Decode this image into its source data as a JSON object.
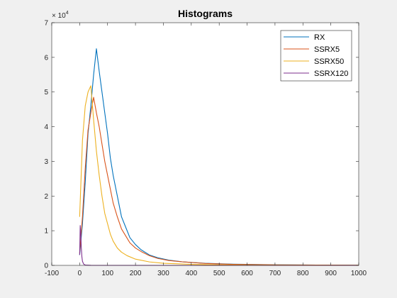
{
  "chart_data": {
    "type": "line",
    "title": "Histograms",
    "xlabel": "",
    "ylabel": "",
    "xlim": [
      -100,
      1000
    ],
    "ylim": [
      0,
      70000
    ],
    "y_exponent_label": "× 10",
    "y_exponent_power": "4",
    "xticks": [
      -100,
      0,
      100,
      200,
      300,
      400,
      500,
      600,
      700,
      800,
      900,
      1000
    ],
    "xtick_labels": [
      "-100",
      "0",
      "100",
      "200",
      "300",
      "400",
      "500",
      "600",
      "700",
      "800",
      "900",
      "1000"
    ],
    "yticks": [
      0,
      10000,
      20000,
      30000,
      40000,
      50000,
      60000,
      70000
    ],
    "ytick_labels": [
      "0",
      "1",
      "2",
      "3",
      "4",
      "5",
      "6",
      "7"
    ],
    "legend_position": "top-right",
    "grid": false,
    "series": [
      {
        "name": "RX",
        "color": "#0072bd",
        "points": [
          [
            0,
            3000
          ],
          [
            10,
            12000
          ],
          [
            20,
            24000
          ],
          [
            30,
            38000
          ],
          [
            40,
            46000
          ],
          [
            50,
            55000
          ],
          [
            60,
            62500
          ],
          [
            70,
            56000
          ],
          [
            80,
            50000
          ],
          [
            90,
            44000
          ],
          [
            100,
            38000
          ],
          [
            110,
            31000
          ],
          [
            120,
            26000
          ],
          [
            135,
            20000
          ],
          [
            150,
            14000
          ],
          [
            165,
            11000
          ],
          [
            180,
            8000
          ],
          [
            200,
            6000
          ],
          [
            220,
            4500
          ],
          [
            250,
            3000
          ],
          [
            280,
            2200
          ],
          [
            320,
            1500
          ],
          [
            370,
            1000
          ],
          [
            450,
            600
          ],
          [
            550,
            350
          ],
          [
            700,
            180
          ],
          [
            850,
            90
          ],
          [
            1000,
            50
          ]
        ]
      },
      {
        "name": "SSRX5",
        "color": "#d95319",
        "points": [
          [
            0,
            3500
          ],
          [
            10,
            14000
          ],
          [
            20,
            28000
          ],
          [
            30,
            39000
          ],
          [
            40,
            44000
          ],
          [
            50,
            48500
          ],
          [
            60,
            44000
          ],
          [
            70,
            40000
          ],
          [
            80,
            35000
          ],
          [
            90,
            30000
          ],
          [
            100,
            26000
          ],
          [
            110,
            22000
          ],
          [
            120,
            18000
          ],
          [
            135,
            14000
          ],
          [
            150,
            10500
          ],
          [
            165,
            8500
          ],
          [
            180,
            6500
          ],
          [
            200,
            5000
          ],
          [
            220,
            4000
          ],
          [
            250,
            2800
          ],
          [
            280,
            2000
          ],
          [
            320,
            1400
          ],
          [
            370,
            1000
          ],
          [
            450,
            550
          ],
          [
            550,
            300
          ],
          [
            700,
            150
          ],
          [
            850,
            80
          ],
          [
            1000,
            40
          ]
        ]
      },
      {
        "name": "SSRX50",
        "color": "#edb120",
        "points": [
          [
            0,
            14000
          ],
          [
            10,
            36000
          ],
          [
            20,
            46000
          ],
          [
            30,
            50000
          ],
          [
            40,
            51800
          ],
          [
            50,
            42000
          ],
          [
            60,
            33000
          ],
          [
            70,
            26000
          ],
          [
            80,
            20000
          ],
          [
            90,
            15000
          ],
          [
            100,
            12000
          ],
          [
            110,
            9000
          ],
          [
            120,
            7000
          ],
          [
            135,
            5000
          ],
          [
            150,
            3800
          ],
          [
            170,
            2800
          ],
          [
            200,
            1800
          ],
          [
            250,
            1000
          ],
          [
            300,
            600
          ],
          [
            400,
            300
          ],
          [
            500,
            150
          ],
          [
            700,
            60
          ],
          [
            1000,
            20
          ]
        ]
      },
      {
        "name": "SSRX120",
        "color": "#7e2f8e",
        "points": [
          [
            0,
            3000
          ],
          [
            2,
            11500
          ],
          [
            4,
            9000
          ],
          [
            6,
            5000
          ],
          [
            8,
            2500
          ],
          [
            10,
            1200
          ],
          [
            14,
            400
          ],
          [
            20,
            100
          ],
          [
            40,
            20
          ],
          [
            100,
            0
          ],
          [
            1000,
            0
          ]
        ]
      }
    ]
  }
}
